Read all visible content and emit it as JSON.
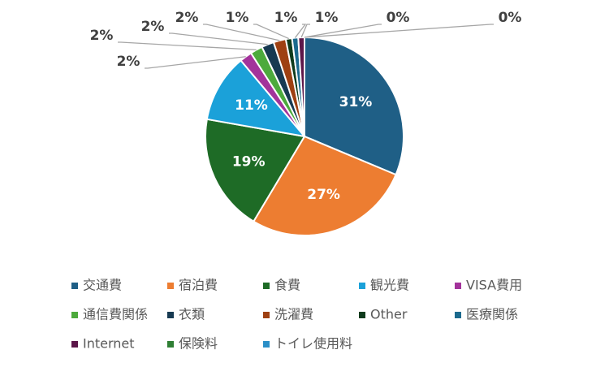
{
  "chart_data": {
    "type": "pie",
    "categories": [
      "交通費",
      "宿泊費",
      "食費",
      "観光費",
      "VISA費用",
      "通信費関係",
      "衣類",
      "洗濯費",
      "Other",
      "医療関係",
      "Internet",
      "保険料",
      "トイレ使用料"
    ],
    "values": [
      31,
      27,
      19,
      11,
      2,
      2,
      2,
      2,
      1,
      1,
      1,
      0,
      0
    ],
    "value_labels": [
      "31%",
      "27%",
      "19%",
      "11%",
      "2%",
      "2%",
      "2%",
      "2%",
      "1%",
      "1%",
      "1%",
      "0%",
      "0%"
    ],
    "colors": [
      "#1f5f86",
      "#ed7d31",
      "#1e6b26",
      "#1ba1d9",
      "#a3339b",
      "#4caa3c",
      "#173a52",
      "#9e4012",
      "#0f3b1c",
      "#1b6a8e",
      "#5c1749",
      "#2f7f34",
      "#2b8fc7"
    ],
    "legend": "bottom"
  }
}
